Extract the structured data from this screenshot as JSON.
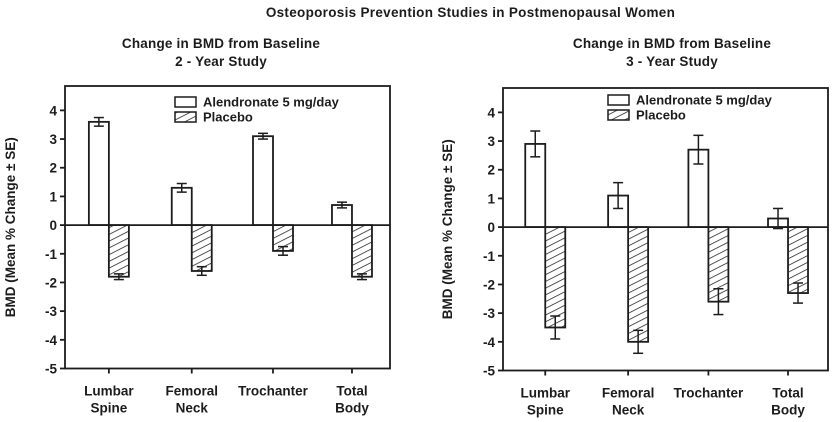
{
  "page": {
    "title": "Osteoporosis Prevention Studies in Postmenopausal Women",
    "background": "#ffffff",
    "ink": "#1c1c1c"
  },
  "chart_data": [
    {
      "type": "bar",
      "title": "Change in BMD from Baseline",
      "subtitle": "2 - Year Study",
      "ylabel": "BMD (Mean % Change ± SE)",
      "xlabel": "",
      "categories": [
        "Lumbar Spine",
        "Femoral Neck",
        "Trochanter",
        "Total Body"
      ],
      "series": [
        {
          "name": "Alendronate 5 mg/day",
          "style": "open",
          "values": [
            3.6,
            1.3,
            3.1,
            0.7
          ],
          "se": [
            0.15,
            0.15,
            0.1,
            0.1
          ]
        },
        {
          "name": "Placebo",
          "style": "hatched",
          "values": [
            -1.8,
            -1.6,
            -0.9,
            -1.8
          ],
          "se": [
            0.1,
            0.15,
            0.15,
            0.1
          ]
        }
      ],
      "ylim": [
        -5,
        4.85
      ],
      "yticks": [
        4,
        3,
        2,
        1,
        0,
        -1,
        -2,
        -3,
        -4,
        -5
      ],
      "grid": false,
      "legend_position": "top-inside",
      "error_bars": "plus-minus-SE"
    },
    {
      "type": "bar",
      "title": "Change in BMD from Baseline",
      "subtitle": "3 - Year Study",
      "ylabel": "BMD (Mean % Change ± SE)",
      "xlabel": "",
      "categories": [
        "Lumbar Spine",
        "Femoral Neck",
        "Trochanter",
        "Total Body"
      ],
      "series": [
        {
          "name": "Alendronate 5 mg/day",
          "style": "open",
          "values": [
            2.9,
            1.1,
            2.7,
            0.3
          ],
          "se": [
            0.45,
            0.45,
            0.5,
            0.35
          ]
        },
        {
          "name": "Placebo",
          "style": "hatched",
          "values": [
            -3.5,
            -4.0,
            -2.6,
            -2.3
          ],
          "se": [
            0.4,
            0.4,
            0.45,
            0.35
          ]
        }
      ],
      "ylim": [
        -5,
        4.85
      ],
      "yticks": [
        4,
        3,
        2,
        1,
        0,
        -1,
        -2,
        -3,
        -4,
        -5
      ],
      "grid": false,
      "legend_position": "top-inside",
      "error_bars": "plus-minus-SE"
    }
  ]
}
